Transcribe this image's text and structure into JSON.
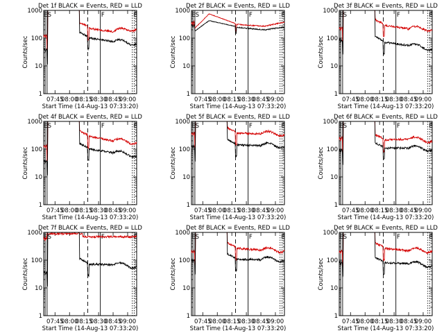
{
  "figure": {
    "time_axis_label": "Start Time (14-Aug-13 07:33:20)",
    "ylabel": "Counts/sec"
  },
  "chart_data": [
    {
      "type": "line",
      "title": "Det 1f BLACK = Events, RED = LLD",
      "xlabel": "Start Time (14-Aug-13 07:33:20)",
      "ylabel": "Counts/sec",
      "yscale": "log",
      "ylim": [
        1,
        1000
      ],
      "yticks": [
        "1",
        "10",
        "100",
        "1000"
      ],
      "xticks": [
        "07:45",
        "08:00",
        "08:15",
        "08:30",
        "08:45",
        "09:00"
      ],
      "markers": [
        "E",
        "S",
        "F",
        "E"
      ],
      "series": [
        {
          "color": "#d40000",
          "profile": "std",
          "pre": 130,
          "after": 260,
          "post": 170,
          "tail": 240
        },
        {
          "color": "#000000",
          "profile": "std",
          "pre": 40,
          "after": 115,
          "post": 75,
          "tail": 70
        }
      ]
    },
    {
      "type": "line",
      "title": "Det 2f BLACK = Events, RED = LLD",
      "xlabel": "Start Time (14-Aug-13 07:33:20)",
      "ylabel": "Counts/sec",
      "yscale": "log",
      "ylim": [
        1,
        1000
      ],
      "yticks": [
        "1",
        "10",
        "100",
        "1000"
      ],
      "xticks": [
        "07:45",
        "08:00",
        "08:15",
        "08:30",
        "08:45",
        "09:00"
      ],
      "markers": [
        "E",
        "S",
        "F",
        "E"
      ],
      "series": [
        {
          "color": "#d40000",
          "profile": "bump",
          "pre": 380,
          "peak": 750,
          "after": 420,
          "post": 270,
          "tail": 380
        },
        {
          "color": "#000000",
          "profile": "bump2",
          "pre": 300,
          "after": 330,
          "post": 200,
          "tail": 250
        }
      ]
    },
    {
      "type": "line",
      "title": "Det 3f BLACK = Events, RED = LLD",
      "xlabel": "Start Time (14-Aug-13 07:33:20)",
      "ylabel": "Counts/sec",
      "yscale": "log",
      "ylim": [
        1,
        1000
      ],
      "yticks": [
        "1",
        "10",
        "100",
        "1000"
      ],
      "xticks": [
        "07:45",
        "08:00",
        "08:15",
        "08:30",
        "08:45",
        "09:00"
      ],
      "markers": [
        "E",
        "S",
        "F",
        "E"
      ],
      "series": [
        {
          "color": "#d40000",
          "profile": "std",
          "pre": 250,
          "after": 330,
          "post": 220,
          "tail": 230
        },
        {
          "color": "#000000",
          "profile": "std",
          "pre": 90,
          "after": 80,
          "post": 55,
          "tail": 45
        }
      ]
    },
    {
      "type": "line",
      "title": "Det 4f BLACK = Events, RED = LLD",
      "xlabel": "Start Time (14-Aug-13 07:33:20)",
      "ylabel": "Counts/sec",
      "yscale": "log",
      "ylim": [
        1,
        1000
      ],
      "yticks": [
        "1",
        "10",
        "100",
        "1000"
      ],
      "xticks": [
        "07:45",
        "08:00",
        "08:15",
        "08:30",
        "08:45",
        "09:00"
      ],
      "markers": [
        "E",
        "S",
        "F",
        "E"
      ],
      "series": [
        {
          "color": "#d40000",
          "profile": "std",
          "pre": 140,
          "after": 330,
          "post": 200,
          "tail": 190
        },
        {
          "color": "#000000",
          "profile": "std",
          "pre": 38,
          "after": 115,
          "post": 75,
          "tail": 65
        }
      ]
    },
    {
      "type": "line",
      "title": "Det 5f BLACK = Events, RED = LLD",
      "xlabel": "Start Time (14-Aug-13 07:33:20)",
      "ylabel": "Counts/sec",
      "yscale": "log",
      "ylim": [
        1,
        1000
      ],
      "yticks": [
        "1",
        "10",
        "100",
        "1000"
      ],
      "xticks": [
        "07:45",
        "08:00",
        "08:15",
        "08:30",
        "08:45",
        "09:00"
      ],
      "markers": [
        "E",
        "S",
        "F",
        "E"
      ],
      "series": [
        {
          "color": "#d40000",
          "profile": "std",
          "pre": 400,
          "after": 420,
          "post": 360,
          "tail": 380
        },
        {
          "color": "#000000",
          "profile": "std",
          "pre": 130,
          "after": 160,
          "post": 135,
          "tail": 140
        }
      ]
    },
    {
      "type": "line",
      "title": "Det 6f BLACK = Events, RED = LLD",
      "xlabel": "Start Time (14-Aug-13 07:33:20)",
      "ylabel": "Counts/sec",
      "yscale": "log",
      "ylim": [
        1,
        1000
      ],
      "yticks": [
        "1",
        "10",
        "100",
        "1000"
      ],
      "xticks": [
        "07:45",
        "08:00",
        "08:15",
        "08:30",
        "08:45",
        "09:00"
      ],
      "markers": [
        "E",
        "S",
        "F",
        "E"
      ],
      "series": [
        {
          "color": "#d40000",
          "profile": "std",
          "pre": 260,
          "after": 240,
          "post": 230,
          "tail": 220
        },
        {
          "color": "#000000",
          "profile": "std",
          "pre": 95,
          "after": 120,
          "post": 110,
          "tail": 105
        }
      ]
    },
    {
      "type": "line",
      "title": "Det 7f BLACK = Events, RED = LLD",
      "xlabel": "Start Time (14-Aug-13 07:33:20)",
      "ylabel": "Counts/sec",
      "yscale": "log",
      "ylim": [
        1,
        1000
      ],
      "yticks": [
        "1",
        "10",
        "100",
        "1000"
      ],
      "xticks": [
        "07:45",
        "08:00",
        "08:15",
        "08:30",
        "08:45",
        "09:00"
      ],
      "markers": [
        "E",
        "S",
        "F",
        "E"
      ],
      "series": [
        {
          "color": "#d40000",
          "profile": "flat",
          "pre": 650,
          "after": 720,
          "post": 700,
          "tail": 680
        },
        {
          "color": "#000000",
          "profile": "std",
          "pre": 38,
          "after": 80,
          "post": 68,
          "tail": 65
        }
      ]
    },
    {
      "type": "line",
      "title": "Det 8f BLACK = Events, RED = LLD",
      "xlabel": "Start Time (14-Aug-13 07:33:20)",
      "ylabel": "Counts/sec",
      "yscale": "log",
      "ylim": [
        1,
        1000
      ],
      "yticks": [
        "1",
        "10",
        "100",
        "1000"
      ],
      "xticks": [
        "07:45",
        "08:00",
        "08:15",
        "08:30",
        "08:45",
        "09:00"
      ],
      "markers": [
        "E",
        "S",
        "F",
        "E"
      ],
      "series": [
        {
          "color": "#d40000",
          "profile": "std",
          "pre": 220,
          "after": 300,
          "post": 230,
          "tail": 240
        },
        {
          "color": "#000000",
          "profile": "std",
          "pre": 105,
          "after": 120,
          "post": 105,
          "tail": 110
        }
      ]
    },
    {
      "type": "line",
      "title": "Det 9f BLACK = Events, RED = LLD",
      "xlabel": "Start Time (14-Aug-13 07:33:20)",
      "ylabel": "Counts/sec",
      "yscale": "log",
      "ylim": [
        1,
        1000
      ],
      "yticks": [
        "1",
        "10",
        "100",
        "1000"
      ],
      "xticks": [
        "07:45",
        "08:00",
        "08:15",
        "08:30",
        "08:45",
        "09:00"
      ],
      "markers": [
        "E",
        "S",
        "F",
        "E"
      ],
      "series": [
        {
          "color": "#d40000",
          "profile": "std",
          "pre": 220,
          "after": 300,
          "post": 220,
          "tail": 240
        },
        {
          "color": "#000000",
          "profile": "std",
          "pre": 85,
          "after": 90,
          "post": 75,
          "tail": 70
        }
      ]
    }
  ]
}
